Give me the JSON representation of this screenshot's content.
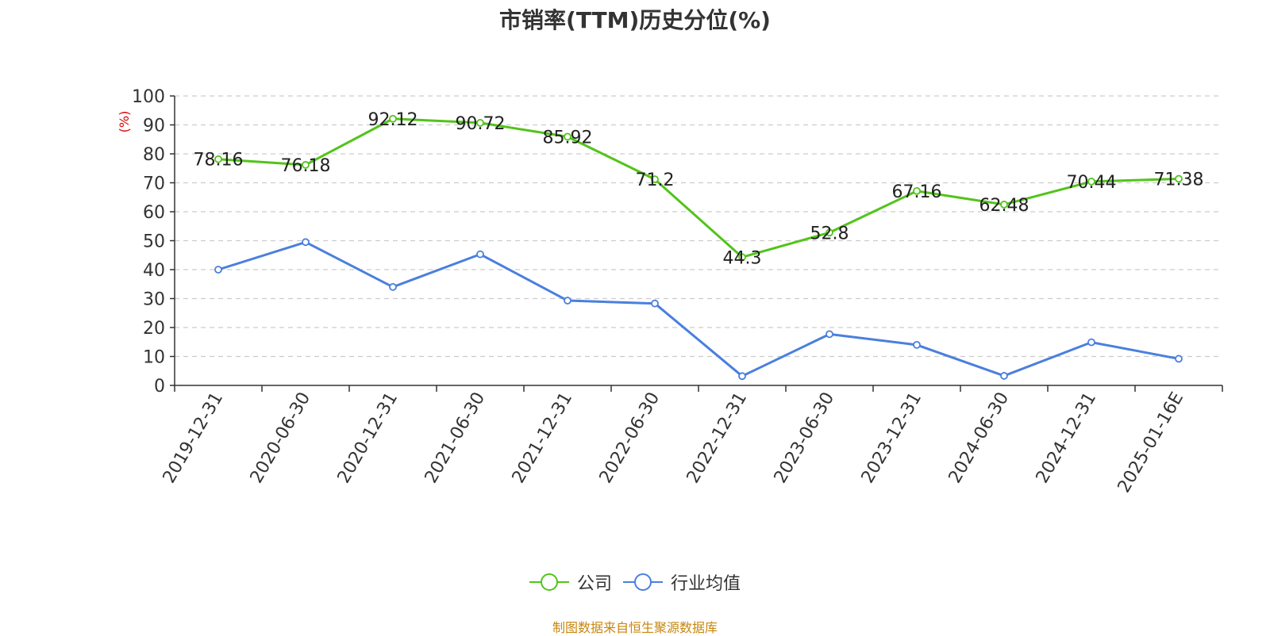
{
  "chart_data": {
    "type": "line",
    "title": "市销率(TTM)历史分位(%)",
    "ylabel": "(%)",
    "xlabel": "",
    "ylim": [
      0,
      100
    ],
    "yticks": [
      0,
      10,
      20,
      30,
      40,
      50,
      60,
      70,
      80,
      90,
      100
    ],
    "grid": true,
    "legend_position": "bottom",
    "categories": [
      "2019-12-31",
      "2020-06-30",
      "2020-12-31",
      "2021-06-30",
      "2021-12-31",
      "2022-06-30",
      "2022-12-31",
      "2023-06-30",
      "2023-12-31",
      "2024-06-30",
      "2024-12-31",
      "2025-01-16E"
    ],
    "series": [
      {
        "name": "公司",
        "color": "#52c41a",
        "show_labels": true,
        "values": [
          78.16,
          76.18,
          92.12,
          90.72,
          85.92,
          71.2,
          44.3,
          52.8,
          67.16,
          62.48,
          70.44,
          71.38
        ]
      },
      {
        "name": "行业均值",
        "color": "#4a7fde",
        "show_labels": false,
        "values": [
          40,
          49.5,
          34,
          45.3,
          29.3,
          28.3,
          3.2,
          17.7,
          14,
          3.3,
          14.9,
          9.2
        ]
      }
    ]
  },
  "source_text": "制图数据来自恒生聚源数据库",
  "colors": {
    "title": "#333333",
    "axis_label": "#e00000",
    "source": "#c8860d"
  }
}
